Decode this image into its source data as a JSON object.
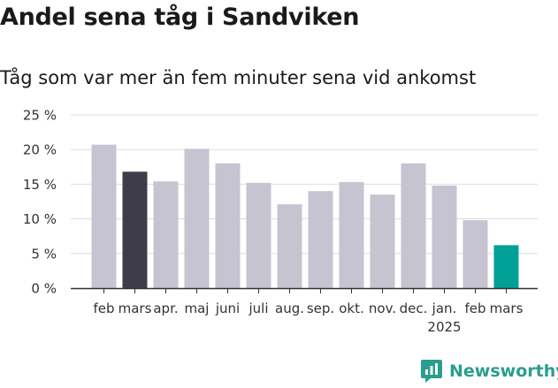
{
  "header": {
    "title": "Andel sena tåg i Sandviken",
    "subtitle": "Tåg som var mer än fem minuter sena vid ankomst"
  },
  "brand": {
    "name": "Newsworthy"
  },
  "colors": {
    "default_bar": "#c6c4d0",
    "highlight_bar": "#3e3c48",
    "latest_bar": "#00a097",
    "grid": "#dddddd",
    "axis": "#333333"
  },
  "chart_data": {
    "type": "bar",
    "categories": [
      "feb",
      "mars",
      "apr.",
      "maj",
      "juni",
      "juli",
      "aug.",
      "sep.",
      "okt.",
      "nov.",
      "dec.",
      "jan.",
      "feb",
      "mars"
    ],
    "year_label": {
      "text": "2025",
      "under_category_index": 11
    },
    "values": [
      20.7,
      16.8,
      15.4,
      20.1,
      18.0,
      15.2,
      12.1,
      14.0,
      15.3,
      13.5,
      18.0,
      14.8,
      9.8,
      6.2
    ],
    "highlight": {
      "dark_index": 1,
      "accent_index": 13
    },
    "ylim": [
      0,
      25
    ],
    "yticks": [
      0,
      5,
      10,
      15,
      20,
      25
    ],
    "ytick_labels": [
      "0 %",
      "5 %",
      "10 %",
      "15 %",
      "20 %",
      "25 %"
    ],
    "grid": true,
    "xlabel": "",
    "ylabel": ""
  }
}
